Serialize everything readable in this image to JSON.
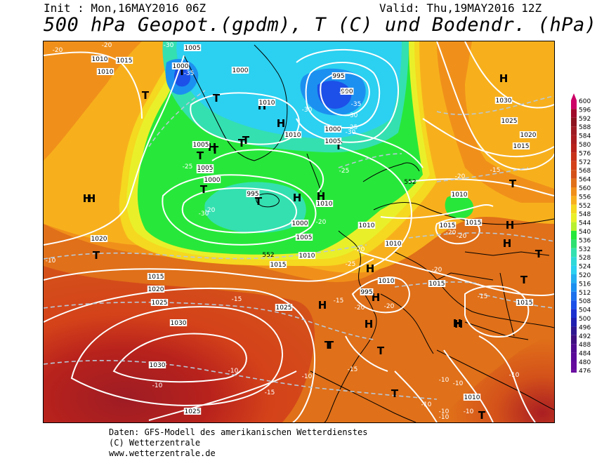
{
  "header": {
    "init": "Init : Mon,16MAY2016 06Z",
    "valid": "Valid: Thu,19MAY2016 12Z",
    "title": "500 hPa Geopot.(gpdm), T (C) und Bodendr. (hPa)"
  },
  "footer": {
    "line1": "Daten: GFS-Modell des amerikanischen Wetterdienstes",
    "line2": "(C) Wetterzentrale",
    "line3": "www.wetterzentrale.de"
  },
  "colors": {
    "c600": "#cc0066",
    "c580": "#9e1c24",
    "c576": "#b8221c",
    "c568": "#d4521a",
    "c564": "#e07019",
    "c560": "#f0901a",
    "c556": "#f7b01c",
    "c552": "#f5d820",
    "c548": "#e9f02a",
    "c540": "#27e83a",
    "c532": "#34e0b0",
    "c524": "#2cd0f0",
    "c516": "#1c90f0",
    "c508": "#1c50e8",
    "c476": "#6a0aa0"
  },
  "scale": {
    "labels": [
      "600",
      "596",
      "592",
      "588",
      "584",
      "580",
      "576",
      "572",
      "568",
      "564",
      "560",
      "556",
      "552",
      "548",
      "544",
      "540",
      "536",
      "532",
      "528",
      "524",
      "520",
      "516",
      "512",
      "508",
      "504",
      "500",
      "496",
      "492",
      "488",
      "484",
      "480",
      "476"
    ],
    "colors": [
      "#cc0066",
      "#a00a2a",
      "#8c1420",
      "#9e1c24",
      "#aa1e22",
      "#b8221c",
      "#c8321a",
      "#d4421a",
      "#d4521a",
      "#e07019",
      "#f0901a",
      "#f7b01c",
      "#f5d820",
      "#e9f02a",
      "#b8f030",
      "#27e83a",
      "#2ee070",
      "#34e0b0",
      "#30d8d8",
      "#2cd0f0",
      "#24b0f0",
      "#1c90f0",
      "#1c70ec",
      "#1c50e8",
      "#1c30d0",
      "#2020b0",
      "#301890",
      "#401080",
      "#500c90",
      "#5a0a98",
      "#640a9c",
      "#6a0aa0"
    ]
  },
  "pressure_labels": [
    {
      "t": "1005"
    },
    {
      "t": "1010"
    },
    {
      "t": "1015"
    },
    {
      "t": "1010"
    },
    {
      "t": "1000"
    },
    {
      "t": "1000"
    },
    {
      "t": "995"
    },
    {
      "t": "990"
    },
    {
      "t": "1010"
    },
    {
      "t": "1010"
    },
    {
      "t": "1000"
    },
    {
      "t": "1005"
    },
    {
      "t": "1005"
    },
    {
      "t": "1005"
    },
    {
      "t": "1005"
    },
    {
      "t": "1000"
    },
    {
      "t": "995"
    },
    {
      "t": "1010"
    },
    {
      "t": "1000"
    },
    {
      "t": "1005"
    },
    {
      "t": "1010"
    },
    {
      "t": "1020"
    },
    {
      "t": "1015"
    },
    {
      "t": "1020"
    },
    {
      "t": "1025"
    },
    {
      "t": "1030"
    },
    {
      "t": "1030"
    },
    {
      "t": "1025"
    },
    {
      "t": "1025"
    },
    {
      "t": "1015"
    },
    {
      "t": "1010"
    },
    {
      "t": "1010"
    },
    {
      "t": "1010"
    },
    {
      "t": "1015"
    },
    {
      "t": "1015"
    },
    {
      "t": "1015"
    },
    {
      "t": "995"
    },
    {
      "t": "1010"
    },
    {
      "t": "1010"
    },
    {
      "t": "1030"
    },
    {
      "t": "1025"
    },
    {
      "t": "1020"
    },
    {
      "t": "1015"
    },
    {
      "t": "1010"
    },
    {
      "t": "1015"
    }
  ],
  "temp_labels": [
    {
      "t": "-20"
    },
    {
      "t": "-20"
    },
    {
      "t": "-30"
    },
    {
      "t": "-35"
    },
    {
      "t": "-30"
    },
    {
      "t": "-35"
    },
    {
      "t": "-35"
    },
    {
      "t": "-30"
    },
    {
      "t": "-25"
    },
    {
      "t": "-30"
    },
    {
      "t": "-30"
    },
    {
      "t": "-25"
    },
    {
      "t": "-20"
    },
    {
      "t": "-20"
    },
    {
      "t": "-25"
    },
    {
      "t": "-20"
    },
    {
      "t": "-20"
    },
    {
      "t": "-15"
    },
    {
      "t": "-25"
    },
    {
      "t": "-20"
    },
    {
      "t": "-20"
    },
    {
      "t": "-20"
    },
    {
      "t": "-20"
    },
    {
      "t": "-15"
    },
    {
      "t": "-15"
    },
    {
      "t": "-15"
    },
    {
      "t": "-10"
    },
    {
      "t": "-10"
    },
    {
      "t": "-10"
    },
    {
      "t": "-15"
    },
    {
      "t": "-10"
    },
    {
      "t": "-10"
    },
    {
      "t": "-10"
    },
    {
      "t": "-10"
    },
    {
      "t": "-10"
    },
    {
      "t": "-10"
    },
    {
      "t": "-15"
    },
    {
      "t": "-20"
    },
    {
      "t": "-10"
    },
    {
      "t": "-10"
    }
  ],
  "height_labels": [
    {
      "t": "552"
    },
    {
      "t": "552"
    }
  ],
  "centers": [
    {
      "t": "T"
    },
    {
      "t": "T"
    },
    {
      "t": "T"
    },
    {
      "t": "H"
    },
    {
      "t": "T"
    },
    {
      "t": "H"
    },
    {
      "t": "T"
    },
    {
      "t": "H"
    },
    {
      "t": "T"
    },
    {
      "t": "H"
    },
    {
      "t": "T"
    },
    {
      "t": "T"
    },
    {
      "t": "H"
    },
    {
      "t": "H"
    },
    {
      "t": "T"
    },
    {
      "t": "T"
    },
    {
      "t": "H"
    },
    {
      "t": "T"
    },
    {
      "t": "H"
    },
    {
      "t": "H"
    },
    {
      "t": "T"
    },
    {
      "t": "H"
    },
    {
      "t": "H"
    },
    {
      "t": "H"
    },
    {
      "t": "T"
    },
    {
      "t": "H"
    },
    {
      "t": "T"
    },
    {
      "t": "H"
    },
    {
      "t": "H"
    },
    {
      "t": "T"
    },
    {
      "t": "H"
    },
    {
      "t": "T"
    },
    {
      "t": "T"
    },
    {
      "t": "T"
    },
    {
      "t": "T"
    }
  ]
}
